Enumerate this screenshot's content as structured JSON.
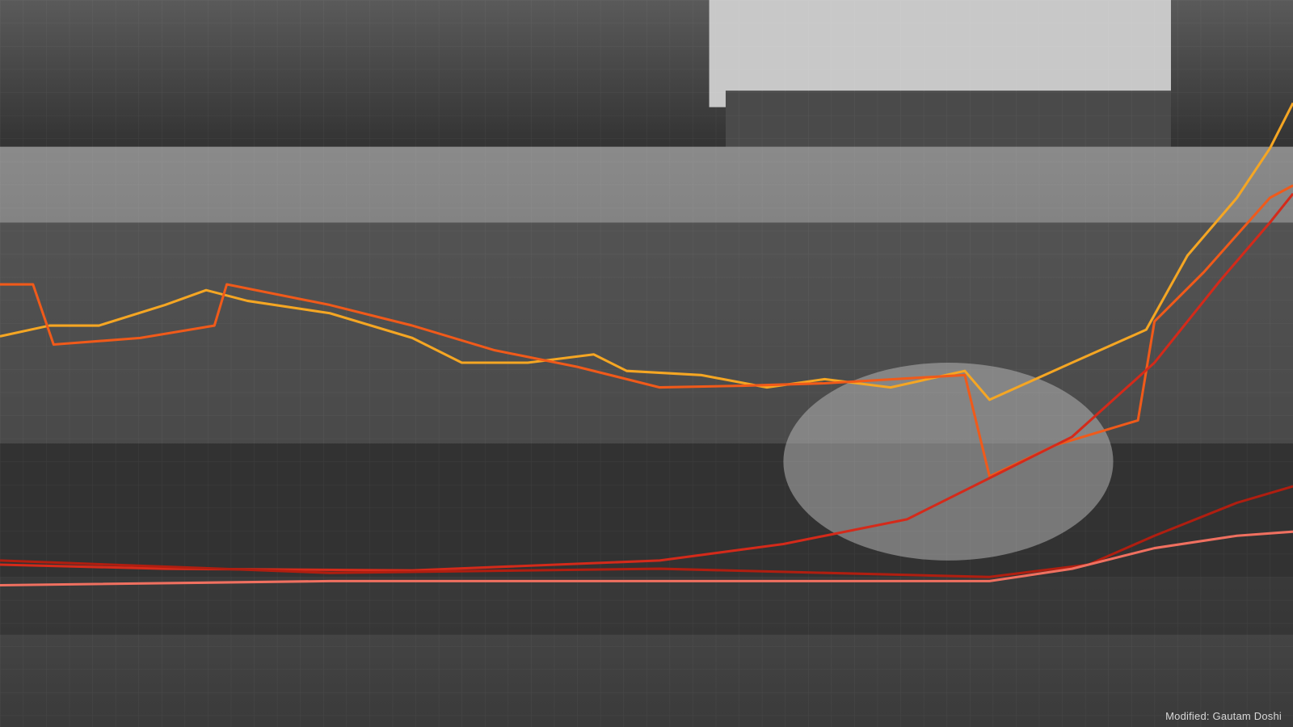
{
  "credit": "Modified: Gautam Doshi",
  "photo": {
    "subject": "black-and-white photo with overlaid colored trend lines",
    "line_colors": [
      "#f5a623",
      "#f05a1a",
      "#d42a1a",
      "#b01e10",
      "#f07060"
    ]
  }
}
